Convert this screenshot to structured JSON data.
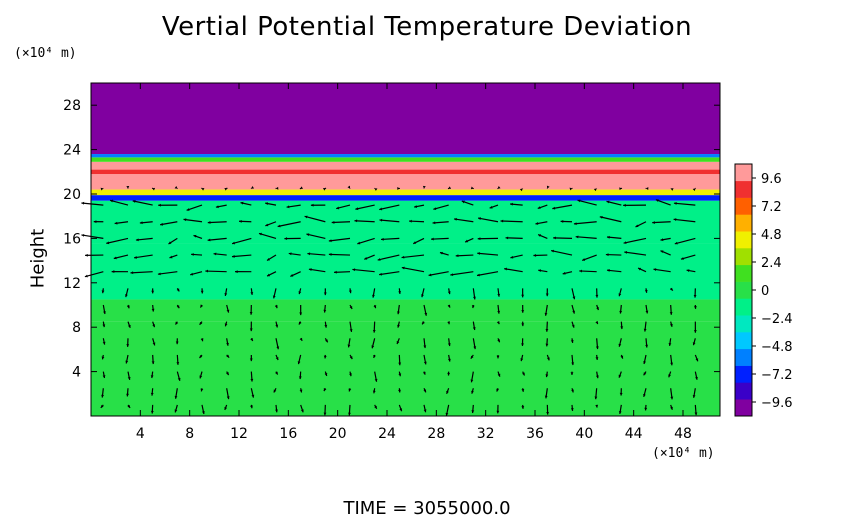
{
  "chart_data": {
    "type": "heatmap",
    "title": "Vertial Potential Temperature Deviation",
    "ylabel": "Height",
    "y_unit": "(×10⁴ m)",
    "x_unit": "(×10⁴ m)",
    "xlim": [
      0,
      51
    ],
    "ylim": [
      0,
      30
    ],
    "x_ticks": [
      4,
      8,
      12,
      16,
      20,
      24,
      28,
      32,
      36,
      40,
      44,
      48
    ],
    "y_ticks": [
      4,
      8,
      12,
      16,
      20,
      24,
      28
    ],
    "colorbar": {
      "ticks": [
        9.6,
        7.2,
        4.8,
        2.4,
        0,
        -2.4,
        -4.8,
        -7.2,
        -9.6
      ],
      "tick_labels": [
        "9.6",
        "7.2",
        "4.8",
        "2.4",
        "0",
        "−2.4",
        "−4.8",
        "−7.2",
        "−9.6"
      ],
      "range": [
        -10.8,
        10.8
      ],
      "colors": [
        "#8000a0",
        "#3a00c8",
        "#0020ff",
        "#0080ff",
        "#00c8ff",
        "#00e8c0",
        "#00f088",
        "#28e048",
        "#40e020",
        "#a0e000",
        "#f0f000",
        "#ffb000",
        "#ff6000",
        "#f03030",
        "#ff9a9a"
      ]
    },
    "field_bands": [
      {
        "y_from": 0,
        "y_to": 8.5,
        "value": 0.2
      },
      {
        "y_from": 8.5,
        "y_to": 10.5,
        "value": -0.6
      },
      {
        "y_from": 10.5,
        "y_to": 15.5,
        "value": -1.4
      },
      {
        "y_from": 15.5,
        "y_to": 19.4,
        "value": -0.9
      },
      {
        "y_from": 19.4,
        "y_to": 19.9,
        "value": -7.5
      },
      {
        "y_from": 19.9,
        "y_to": 20.4,
        "value": 4.0
      },
      {
        "y_from": 20.4,
        "y_to": 21.8,
        "value": 10.0
      },
      {
        "y_from": 21.8,
        "y_to": 22.2,
        "value": 8.0
      },
      {
        "y_from": 22.2,
        "y_to": 22.9,
        "value": 10.0
      },
      {
        "y_from": 22.9,
        "y_to": 23.3,
        "value": 1.5
      },
      {
        "y_from": 23.3,
        "y_to": 23.6,
        "value": -5.5
      },
      {
        "y_from": 23.6,
        "y_to": 30,
        "value": -10.5
      }
    ],
    "vector_field": {
      "x_spacing": 2,
      "y_spacing": 1.5,
      "strong_region": {
        "y_from": 12,
        "y_to": 19,
        "u": -2.2,
        "v": 0.3
      },
      "note": "wind vectors overlaid on field"
    },
    "time_label": "TIME  =  3055000.0"
  }
}
